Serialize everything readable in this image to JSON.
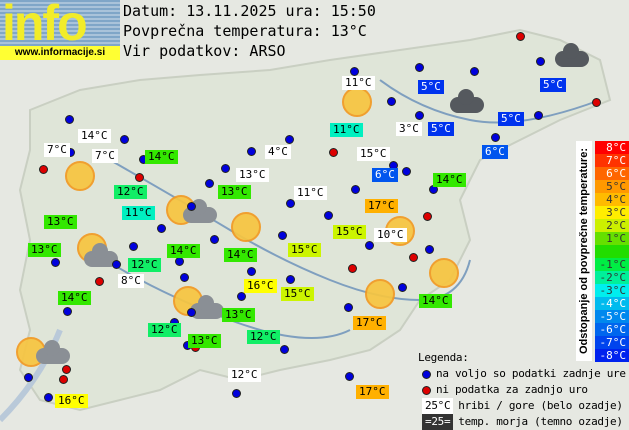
{
  "logo": {
    "text": "info",
    "url": "www.informacije.si"
  },
  "header": {
    "date_line": "Datum: 13.11.2025 ura: 15:50",
    "avg_temp_line": "Povprečna temperatura: 13°C",
    "source_line": "Vir podatkov: ARSO"
  },
  "map": {
    "labels": [
      {
        "text": "11°C",
        "bg": "#ffffff"
      },
      {
        "text": "5°C",
        "bg": "#0033ee"
      },
      {
        "text": "5°C",
        "bg": "#0033ee"
      },
      {
        "text": "14°C",
        "bg": "#ffffff"
      },
      {
        "text": "11°C",
        "bg": "#00f0c0"
      },
      {
        "text": "3°C",
        "bg": "#ffffff"
      },
      {
        "text": "5°C",
        "bg": "#0033ee"
      },
      {
        "text": "5°C",
        "bg": "#0033ee"
      },
      {
        "text": "7°C",
        "bg": "#ffffff"
      },
      {
        "text": "7°C",
        "bg": "#ffffff"
      },
      {
        "text": "14°C",
        "bg": "#33e800"
      },
      {
        "text": "4°C",
        "bg": "#ffffff"
      },
      {
        "text": "15°C",
        "bg": "#ffffff"
      },
      {
        "text": "6°C",
        "bg": "#0055ee"
      },
      {
        "text": "13°C",
        "bg": "#ffffff"
      },
      {
        "text": "6°C",
        "bg": "#0055ee"
      },
      {
        "text": "14°C",
        "bg": "#33e800"
      },
      {
        "text": "12°C",
        "bg": "#11ee66"
      },
      {
        "text": "13°C",
        "bg": "#33e800"
      },
      {
        "text": "11°C",
        "bg": "#ffffff"
      },
      {
        "text": "17°C",
        "bg": "#ffb000"
      },
      {
        "text": "11°C",
        "bg": "#00f0c0"
      },
      {
        "text": "13°C",
        "bg": "#33e800"
      },
      {
        "text": "10°C",
        "bg": "#ffffff"
      },
      {
        "text": "15°C",
        "bg": "#ccf500"
      },
      {
        "text": "13°C",
        "bg": "#33e800"
      },
      {
        "text": "14°C",
        "bg": "#33e800"
      },
      {
        "text": "14°C",
        "bg": "#33e800"
      },
      {
        "text": "15°C",
        "bg": "#ccf500"
      },
      {
        "text": "12°C",
        "bg": "#11ee66"
      },
      {
        "text": "8°C",
        "bg": "#ffffff"
      },
      {
        "text": "16°C",
        "bg": "#ffff00"
      },
      {
        "text": "15°C",
        "bg": "#ccf500"
      },
      {
        "text": "14°C",
        "bg": "#33e800"
      },
      {
        "text": "14°C",
        "bg": "#33e800"
      },
      {
        "text": "13°C",
        "bg": "#33e800"
      },
      {
        "text": "17°C",
        "bg": "#ffb000"
      },
      {
        "text": "12°C",
        "bg": "#11ee66"
      },
      {
        "text": "13°C",
        "bg": "#33e800"
      },
      {
        "text": "12°C",
        "bg": "#11ee66"
      },
      {
        "text": "12°C",
        "bg": "#ffffff"
      },
      {
        "text": "17°C",
        "bg": "#ffb000"
      },
      {
        "text": "16°C",
        "bg": "#ffff00"
      }
    ]
  },
  "scale": {
    "title": "Odstopanje od povprečne temperature:",
    "bands": [
      {
        "text": "8°C",
        "bg": "#ff0000"
      },
      {
        "text": "7°C",
        "bg": "#ff3300"
      },
      {
        "text": "6°C",
        "bg": "#ff6600"
      },
      {
        "text": "5°C",
        "bg": "#ff9900"
      },
      {
        "text": "4°C",
        "bg": "#ffbb00"
      },
      {
        "text": "3°C",
        "bg": "#ffee00"
      },
      {
        "text": "2°C",
        "bg": "#ccf000"
      },
      {
        "text": "1°C",
        "bg": "#66e000"
      },
      {
        "text": "",
        "bg": "#22dd00"
      },
      {
        "text": "-1°C",
        "bg": "#00ee44"
      },
      {
        "text": "-2°C",
        "bg": "#00f09a"
      },
      {
        "text": "-3°C",
        "bg": "#00eeee"
      },
      {
        "text": "-4°C",
        "bg": "#00bbee"
      },
      {
        "text": "-5°C",
        "bg": "#0088ee"
      },
      {
        "text": "-6°C",
        "bg": "#0066ee"
      },
      {
        "text": "-7°C",
        "bg": "#0044ee"
      },
      {
        "text": "-8°C",
        "bg": "#0022ee"
      }
    ]
  },
  "legend": {
    "title": "Legenda:",
    "blue_dot": "na voljo so podatki zadnje ure",
    "red_dot": "ni podatka za zadnjo uro",
    "mountain_sample": "25°C",
    "mountain_text": "hribi / gore (belo ozadje)",
    "sea_sample": "=25=",
    "sea_text": "temp. morja (temno ozadje)",
    "colors": {
      "available": "#0000dd",
      "missing": "#dd0000"
    }
  }
}
